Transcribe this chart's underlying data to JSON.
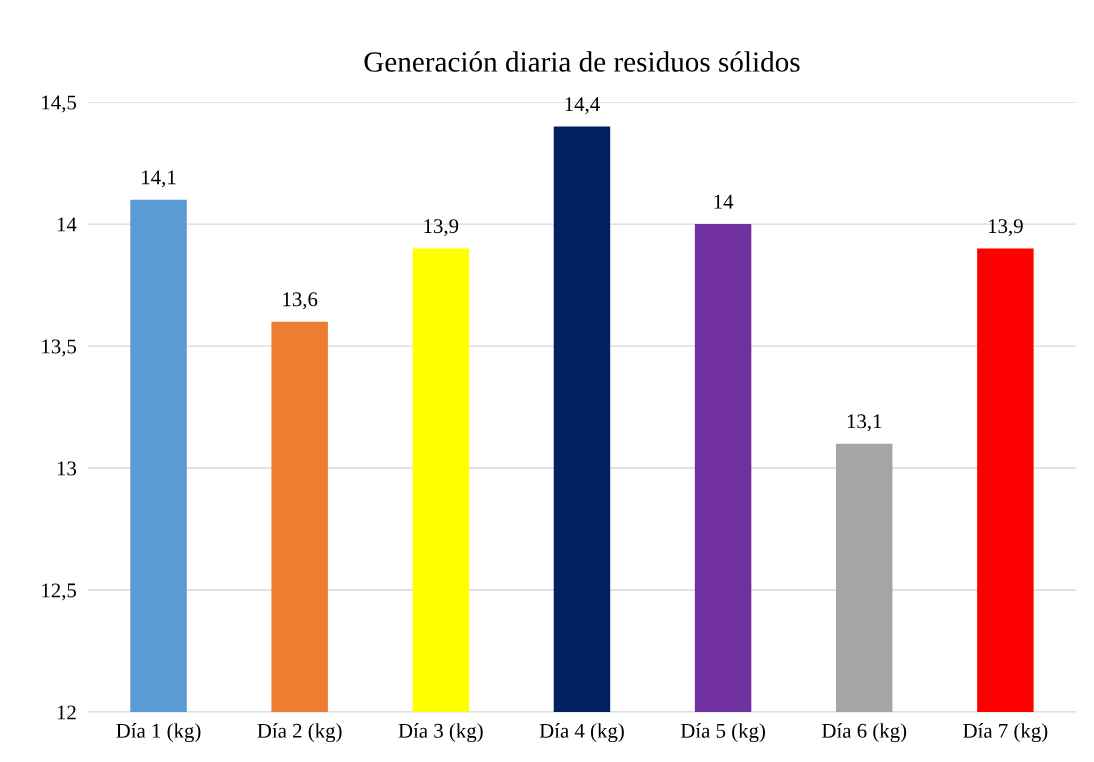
{
  "chart_data": {
    "type": "bar",
    "title": "Generación diaria de residuos sólidos",
    "categories": [
      "Día 1 (kg)",
      "Día 2 (kg)",
      "Día 3 (kg)",
      "Día 4 (kg)",
      "Día 5 (kg)",
      "Día 6 (kg)",
      "Día 7 (kg)"
    ],
    "values": [
      14.1,
      13.6,
      13.9,
      14.4,
      14,
      13.1,
      13.9
    ],
    "colors": [
      "#5b9bd5",
      "#ed7d31",
      "#ffff00",
      "#002060",
      "#7030a0",
      "#a5a5a5",
      "#ff0000"
    ],
    "value_labels": [
      "14,1",
      "13,6",
      "13,9",
      "14,4",
      "14",
      "13,1",
      "13,9"
    ],
    "ylim": [
      12,
      14.5
    ],
    "yticks": [
      12,
      {
        "value": 12.5,
        "label": "12,5"
      },
      13,
      {
        "value": 13.5,
        "label": "13,5"
      },
      14,
      {
        "value": 14.5,
        "label": "14,5"
      }
    ],
    "grid": "y",
    "legend": false
  }
}
